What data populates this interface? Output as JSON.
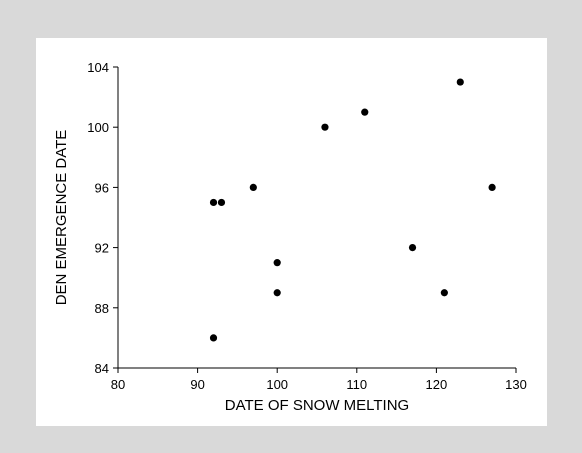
{
  "chart_data": {
    "type": "scatter",
    "title": "",
    "xlabel": "DATE OF SNOW MELTING",
    "ylabel": "DEN EMERGENCE DATE",
    "xlim": [
      80,
      130
    ],
    "ylim": [
      84,
      104
    ],
    "xticks": [
      80,
      90,
      100,
      110,
      120,
      130
    ],
    "yticks": [
      84,
      88,
      92,
      96,
      100,
      104
    ],
    "grid": false,
    "legend": "none",
    "point_color": "#000000",
    "points": [
      {
        "x": 92,
        "y": 86
      },
      {
        "x": 92,
        "y": 95
      },
      {
        "x": 93,
        "y": 95
      },
      {
        "x": 97,
        "y": 96
      },
      {
        "x": 100,
        "y": 91
      },
      {
        "x": 100,
        "y": 89
      },
      {
        "x": 106,
        "y": 100
      },
      {
        "x": 111,
        "y": 101
      },
      {
        "x": 117,
        "y": 92
      },
      {
        "x": 121,
        "y": 89
      },
      {
        "x": 123,
        "y": 103
      },
      {
        "x": 127,
        "y": 96
      }
    ]
  }
}
